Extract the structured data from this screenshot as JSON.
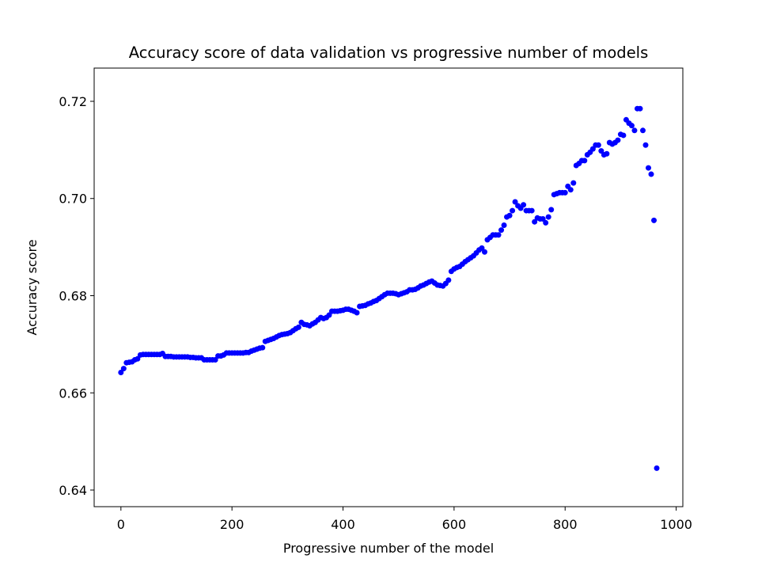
{
  "chart_data": {
    "type": "scatter",
    "title": "Accuracy score of data validation vs progressive number of models",
    "x_label": "Progressive number of the model",
    "y_label": "Accuracy score",
    "color": "#0000ff",
    "xlim": [
      -48.2,
      1012
    ],
    "ylim": [
      0.63658,
      0.72684
    ],
    "xticks": [
      0,
      200,
      400,
      600,
      800,
      1000
    ],
    "yticks": [
      0.64,
      0.66,
      0.68,
      {
        "value": 0.7,
        "label": "0.70"
      },
      0.72
    ],
    "x": [
      0,
      5,
      10,
      15,
      20,
      25,
      30,
      35,
      40,
      45,
      50,
      55,
      60,
      65,
      70,
      75,
      80,
      85,
      90,
      95,
      100,
      105,
      110,
      115,
      120,
      125,
      130,
      135,
      140,
      145,
      150,
      155,
      160,
      165,
      170,
      175,
      180,
      185,
      190,
      195,
      200,
      205,
      210,
      215,
      220,
      225,
      230,
      235,
      240,
      245,
      250,
      255,
      260,
      265,
      270,
      275,
      280,
      285,
      290,
      295,
      300,
      305,
      310,
      315,
      320,
      325,
      330,
      335,
      340,
      345,
      350,
      355,
      360,
      365,
      370,
      375,
      380,
      385,
      390,
      395,
      400,
      405,
      410,
      415,
      420,
      425,
      430,
      435,
      440,
      445,
      450,
      455,
      460,
      465,
      470,
      475,
      480,
      485,
      490,
      495,
      500,
      505,
      510,
      515,
      520,
      525,
      530,
      535,
      540,
      545,
      550,
      555,
      560,
      565,
      570,
      575,
      580,
      585,
      590,
      595,
      600,
      605,
      610,
      615,
      620,
      625,
      630,
      635,
      640,
      645,
      650,
      655,
      660,
      665,
      670,
      675,
      680,
      685,
      690,
      695,
      700,
      705,
      710,
      715,
      720,
      725,
      730,
      735,
      740,
      745,
      750,
      755,
      760,
      765,
      770,
      775,
      780,
      785,
      790,
      795,
      800,
      805,
      810,
      815,
      820,
      825,
      830,
      835,
      840,
      845,
      850,
      855,
      860,
      865,
      870,
      875,
      880,
      885,
      890,
      895,
      900,
      905,
      910,
      915,
      920,
      925,
      930,
      935,
      940,
      945,
      950,
      955,
      960,
      965
    ],
    "y": [
      0.6642,
      0.665,
      0.6662,
      0.6663,
      0.6664,
      0.6668,
      0.667,
      0.6678,
      0.6679,
      0.6679,
      0.6679,
      0.6679,
      0.6679,
      0.6679,
      0.6679,
      0.6681,
      0.6675,
      0.6675,
      0.6675,
      0.6674,
      0.6674,
      0.6674,
      0.6674,
      0.6674,
      0.6674,
      0.6673,
      0.6673,
      0.6672,
      0.6672,
      0.6672,
      0.6668,
      0.6668,
      0.6668,
      0.6668,
      0.6668,
      0.6676,
      0.6676,
      0.6678,
      0.6682,
      0.6682,
      0.6682,
      0.6682,
      0.6682,
      0.6682,
      0.6682,
      0.6683,
      0.6683,
      0.6686,
      0.6688,
      0.669,
      0.6692,
      0.6693,
      0.6706,
      0.6708,
      0.671,
      0.6712,
      0.6715,
      0.6718,
      0.672,
      0.6721,
      0.6722,
      0.6724,
      0.6728,
      0.6732,
      0.6735,
      0.6745,
      0.6741,
      0.674,
      0.6738,
      0.6742,
      0.6745,
      0.675,
      0.6755,
      0.6753,
      0.6755,
      0.676,
      0.6768,
      0.6768,
      0.6768,
      0.6769,
      0.677,
      0.6772,
      0.6772,
      0.677,
      0.6768,
      0.6765,
      0.6778,
      0.6779,
      0.678,
      0.6783,
      0.6785,
      0.6788,
      0.679,
      0.6794,
      0.6798,
      0.6802,
      0.6805,
      0.6805,
      0.6805,
      0.6804,
      0.6802,
      0.6804,
      0.6806,
      0.6808,
      0.6812,
      0.6812,
      0.6813,
      0.6816,
      0.682,
      0.6822,
      0.6825,
      0.6828,
      0.683,
      0.6826,
      0.6822,
      0.6821,
      0.682,
      0.6825,
      0.6832,
      0.685,
      0.6855,
      0.6858,
      0.686,
      0.6865,
      0.687,
      0.6874,
      0.6878,
      0.6882,
      0.6888,
      0.6894,
      0.6898,
      0.689,
      0.6915,
      0.692,
      0.6925,
      0.6925,
      0.6925,
      0.6935,
      0.6945,
      0.6962,
      0.6965,
      0.6975,
      0.6993,
      0.6985,
      0.698,
      0.6987,
      0.6975,
      0.6975,
      0.6975,
      0.6952,
      0.696,
      0.6958,
      0.6958,
      0.695,
      0.6962,
      0.6977,
      0.7008,
      0.701,
      0.7012,
      0.7012,
      0.7012,
      0.7025,
      0.7018,
      0.7032,
      0.7068,
      0.7072,
      0.7078,
      0.7078,
      0.709,
      0.7095,
      0.7102,
      0.711,
      0.711,
      0.7098,
      0.709,
      0.7092,
      0.7115,
      0.7112,
      0.7115,
      0.712,
      0.7132,
      0.713,
      0.7162,
      0.7155,
      0.715,
      0.714,
      0.7185,
      0.7185,
      0.714,
      0.711,
      0.7063,
      0.705,
      0.6955,
      0.6445
    ]
  }
}
